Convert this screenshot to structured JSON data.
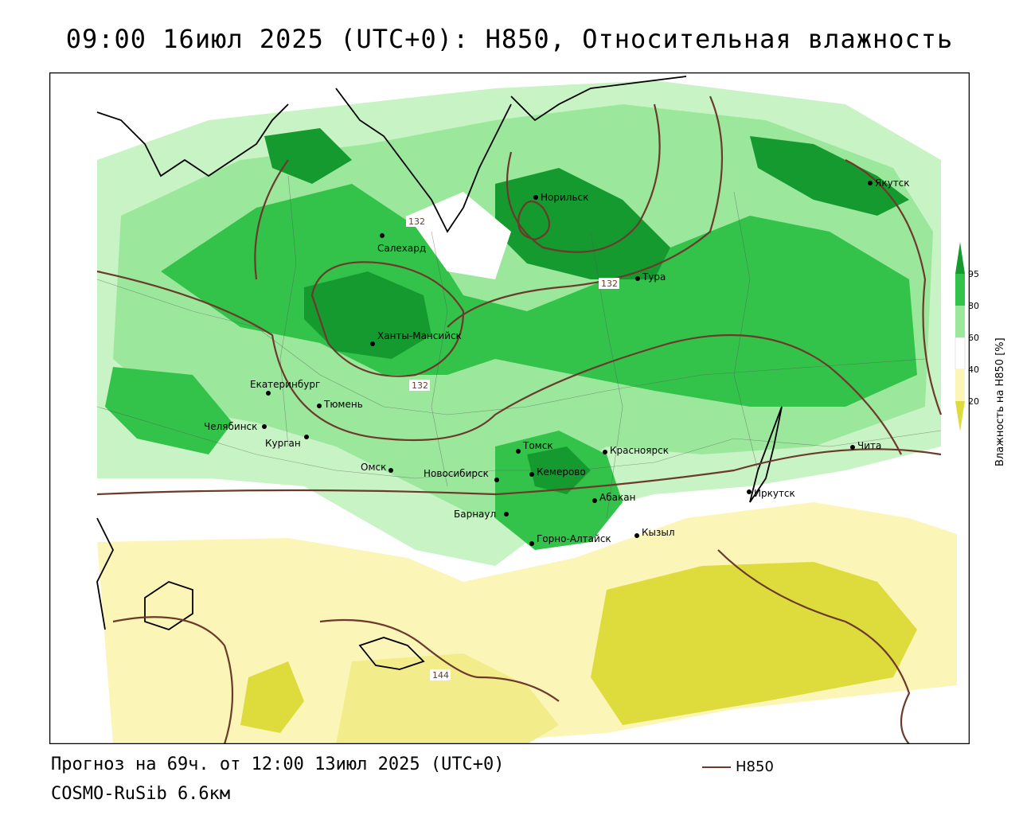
{
  "header": {
    "title": "09:00 16июл 2025 (UTC+0): H850, Относительная влажность"
  },
  "footer": {
    "forecast": "Прогноз на 69ч. от 12:00 13июл 2025 (UTC+0)",
    "model": "COSMO-RuSib 6.6км"
  },
  "series_legend": {
    "label": "H850",
    "color": "#6b3a2a"
  },
  "colorbar": {
    "title": "Влажность на H850 [%]",
    "ticks": [
      "95",
      "80",
      "60",
      "40",
      "20"
    ],
    "colors": {
      "dark_green": "#159a2f",
      "green": "#33c34a",
      "light_green": "#9be89d",
      "pale_green": "#c8f3c4",
      "white": "#ffffff",
      "pale_yellow": "#fbf5b8",
      "yellow": "#f2ec8a",
      "olive_yellow": "#dedc3c",
      "contour_brown": "#6b3a2a"
    }
  },
  "cities": [
    {
      "name": "Норильск"
    },
    {
      "name": "Якутск"
    },
    {
      "name": "Салехард"
    },
    {
      "name": "Тура"
    },
    {
      "name": "Ханты-Мансийск"
    },
    {
      "name": "Екатеринбург"
    },
    {
      "name": "Тюмень"
    },
    {
      "name": "Челябинск"
    },
    {
      "name": "Курган"
    },
    {
      "name": "Томск"
    },
    {
      "name": "Красноярск"
    },
    {
      "name": "Омск"
    },
    {
      "name": "Новосибирск"
    },
    {
      "name": "Кемерово"
    },
    {
      "name": "Абакан"
    },
    {
      "name": "Барнаул"
    },
    {
      "name": "Горно-Алтайск"
    },
    {
      "name": "Кызыл"
    },
    {
      "name": "Иркутск"
    },
    {
      "name": "Чита"
    }
  ],
  "isolines": [
    "132",
    "132",
    "132",
    "144"
  ]
}
